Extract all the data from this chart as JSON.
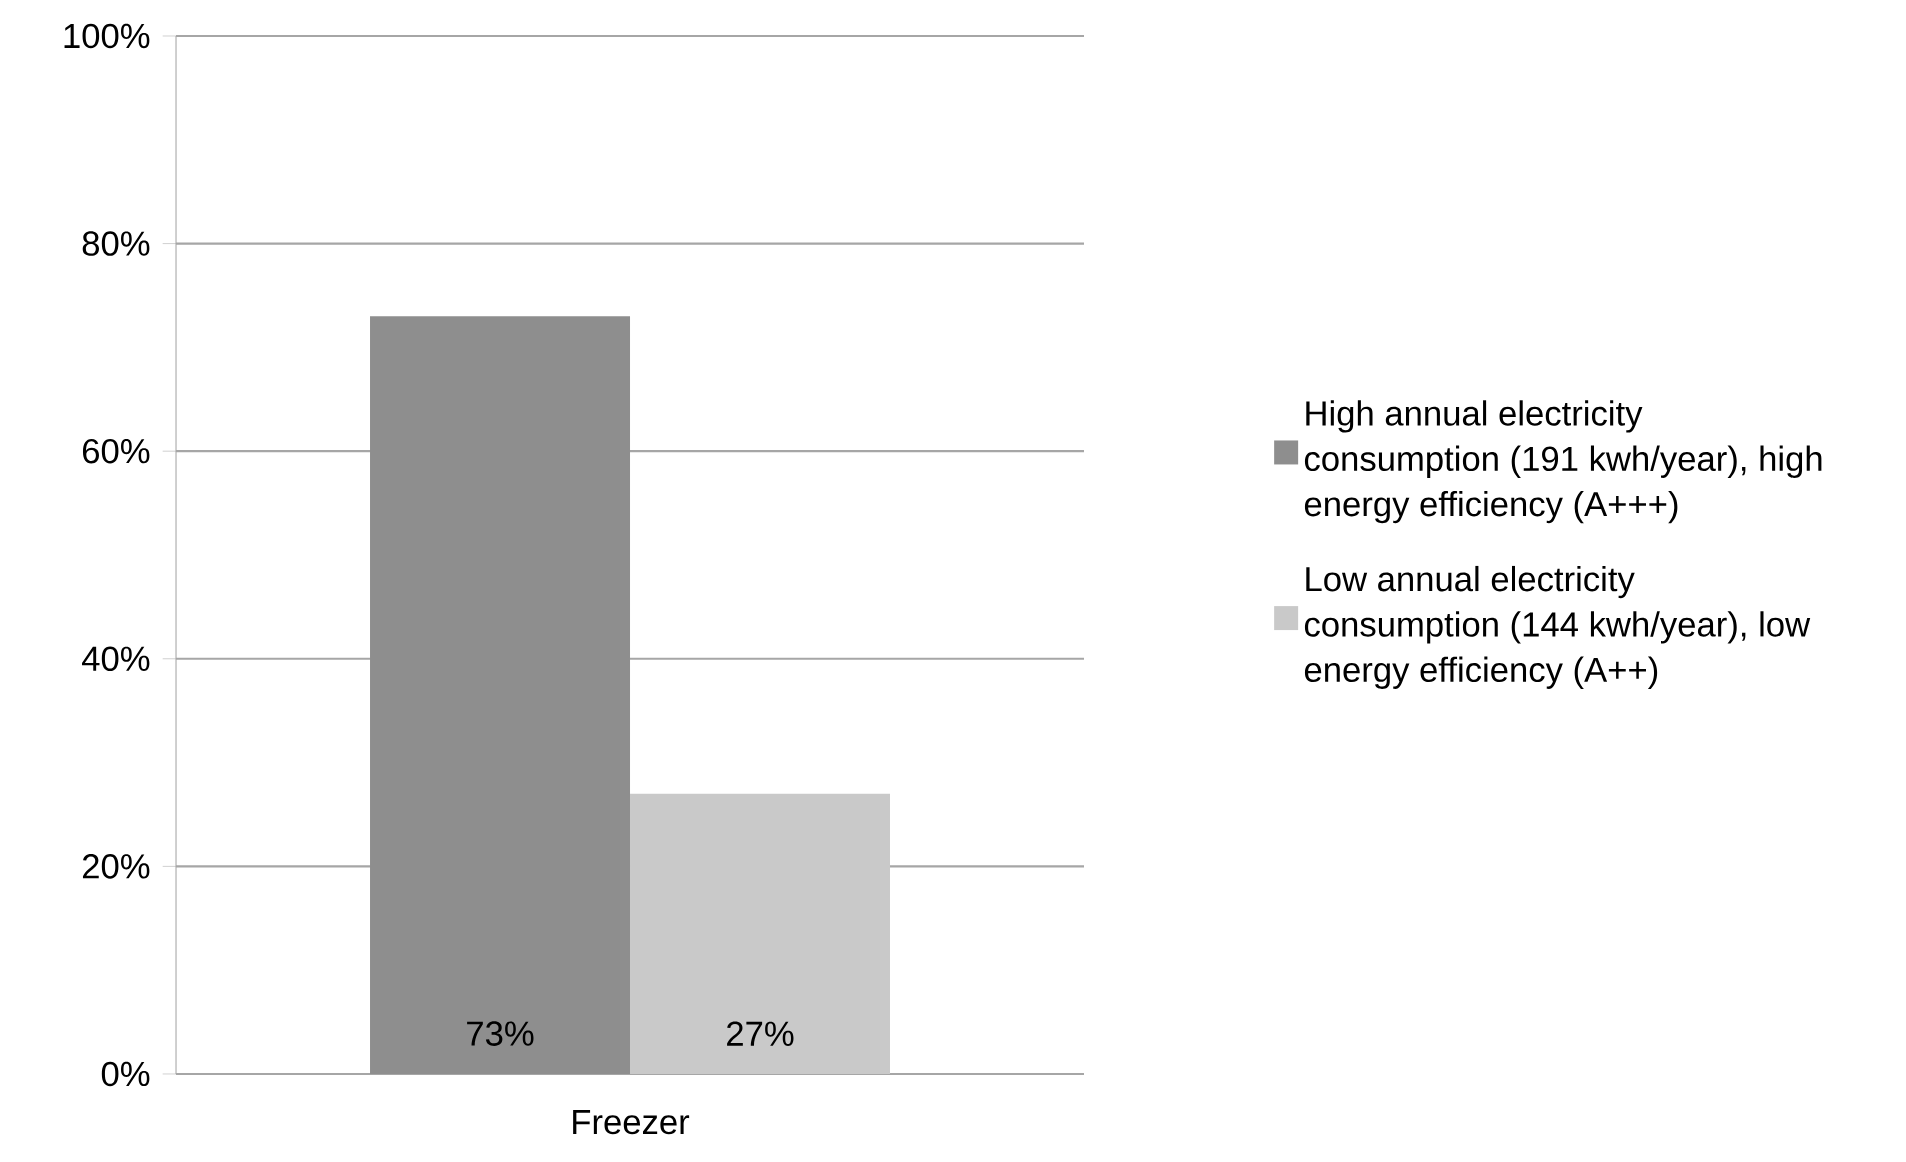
{
  "chart_data": {
    "type": "bar",
    "categories": [
      "Freezer"
    ],
    "series": [
      {
        "name": "High annual electricity consumption (191 kwh/year), high energy efficiency (A+++)",
        "color": "#8e8e8e",
        "values": [
          73
        ],
        "value_labels": [
          "73%"
        ]
      },
      {
        "name": "Low annual electricity consumption (144 kwh/year), low energy efficiency (A++)",
        "color": "#c9c9c9",
        "values": [
          27
        ],
        "value_labels": [
          "27%"
        ]
      }
    ],
    "ylim": [
      0,
      100
    ],
    "yticks": [
      {
        "value": 0,
        "label": "0%"
      },
      {
        "value": 20,
        "label": "20%"
      },
      {
        "value": 40,
        "label": "40%"
      },
      {
        "value": 60,
        "label": "60%"
      },
      {
        "value": 80,
        "label": "80%"
      },
      {
        "value": 100,
        "label": "100%"
      }
    ],
    "grid": "y",
    "legend": "right"
  }
}
